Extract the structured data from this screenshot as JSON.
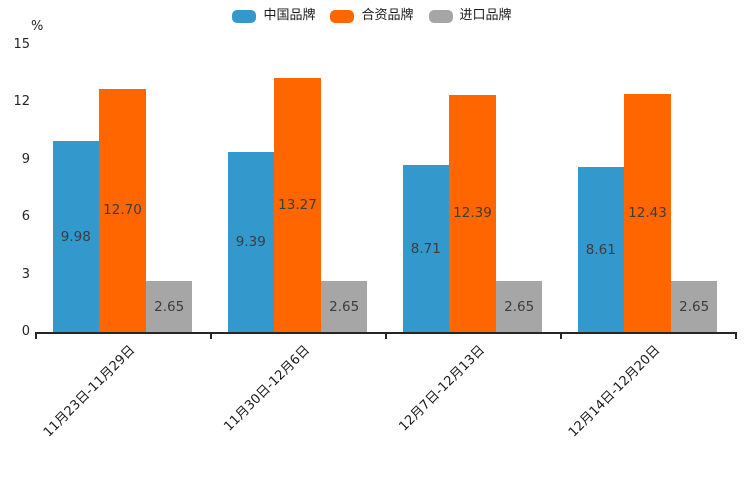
{
  "chart_data": {
    "type": "bar",
    "title": "",
    "unit_label": "%",
    "categories": [
      "11月23日-11月29日",
      "11月30日-12月6日",
      "12月7日-12月13日",
      "12月14日-12月20日"
    ],
    "series": [
      {
        "name": "中国品牌",
        "color": "#3398CC",
        "values": [
          9.98,
          9.39,
          8.71,
          8.61
        ]
      },
      {
        "name": "合资品牌",
        "color": "#FF6600",
        "values": [
          12.7,
          13.27,
          12.39,
          12.43
        ]
      },
      {
        "name": "进口品牌",
        "color": "#A6A6A6",
        "values": [
          2.65,
          2.65,
          2.65,
          2.65
        ]
      }
    ],
    "ylim": [
      0,
      15
    ],
    "yticks": [
      0,
      3,
      6,
      9,
      12,
      15
    ],
    "ylabel": "",
    "xlabel": "",
    "legend_position": "top",
    "grid": false,
    "value_labels": true,
    "value_label_decimals": 2,
    "axis_color": "#262626",
    "tick_label_color": "#262626",
    "value_label_color": "#3d3d3d"
  }
}
